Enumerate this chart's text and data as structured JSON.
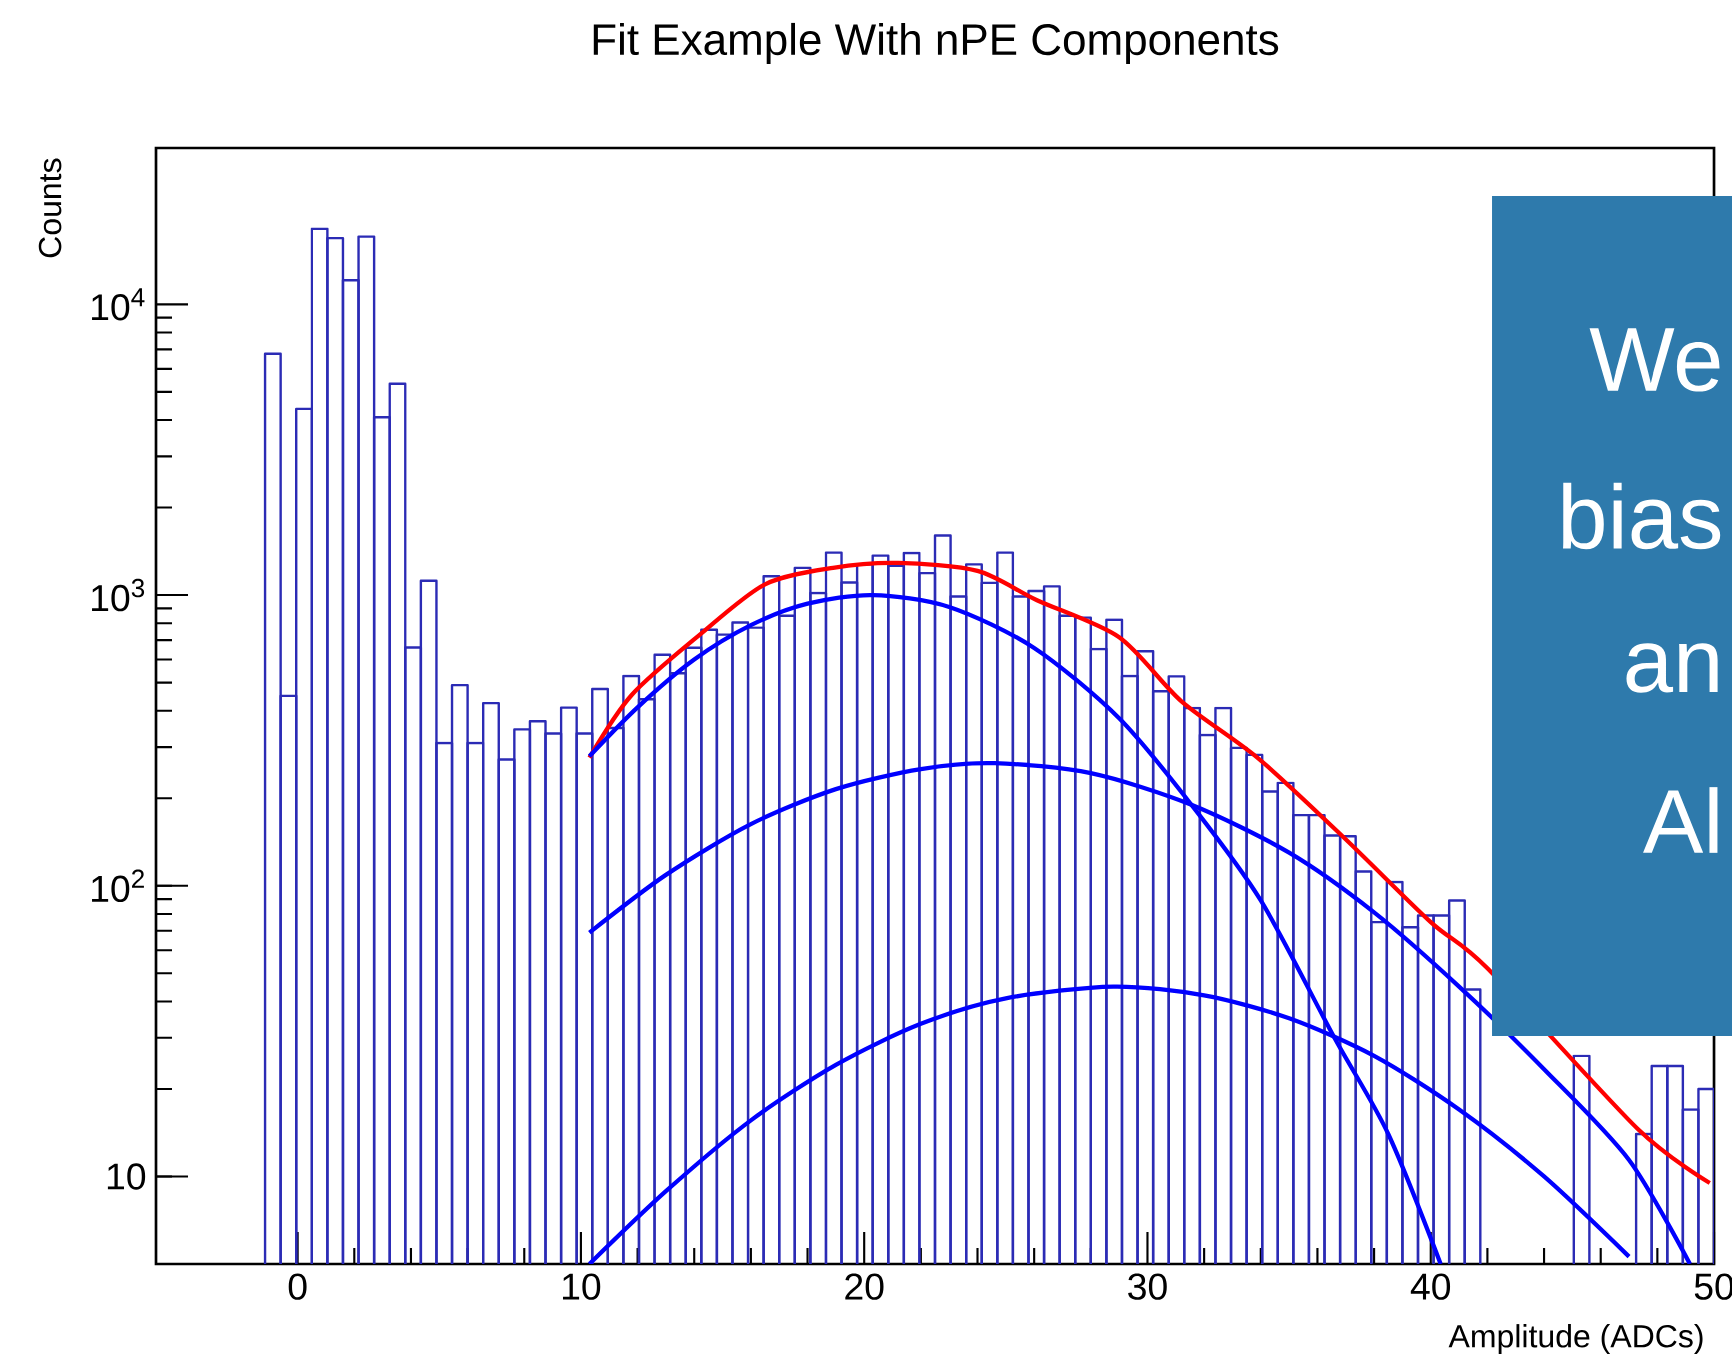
{
  "chart_data": {
    "type": "histogram",
    "title": "Fit Example With nPE Components",
    "xlabel": "Amplitude (ADCs)",
    "ylabel": "Counts",
    "xlim": [
      -5,
      50
    ],
    "xticks": [
      0,
      10,
      20,
      30,
      40,
      50
    ],
    "ylim": [
      5,
      34500
    ],
    "yticks": [
      10,
      {
        "value": 100,
        "label": "10$^{2}$"
      },
      {
        "value": 1000,
        "label": "10$^{3}$"
      },
      {
        "value": 10000,
        "label": "10$^{4}$"
      }
    ],
    "log": "y",
    "annotations": [
      "We",
      "bias",
      "an",
      "Al"
    ],
    "series": [
      {
        "type": "histogram",
        "color": "#2b2bb5",
        "bins": [
          -1.15,
          -0.6,
          -0.05,
          0.5,
          1.05,
          1.6,
          2.15,
          2.7,
          3.25,
          3.8,
          4.35,
          4.9,
          5.45,
          6,
          6.55,
          7.1,
          7.65,
          8.2,
          8.75,
          9.3,
          9.85,
          10.4,
          10.95,
          11.5,
          12.05,
          12.6,
          13.15,
          13.7,
          14.25,
          14.8,
          15.35,
          15.9,
          16.45,
          17,
          17.55,
          18.1,
          18.65,
          19.2,
          19.75,
          20.3,
          20.85,
          21.4,
          21.95,
          22.5,
          23.05,
          23.6,
          24.15,
          24.7,
          25.25,
          25.8,
          26.35,
          26.9,
          27.45,
          28,
          28.55,
          29.1,
          29.65,
          30.2,
          30.75,
          31.3,
          31.85,
          32.4,
          32.95,
          33.5,
          34.05,
          34.6,
          35.15,
          35.7,
          36.25,
          36.8,
          37.35,
          37.9,
          38.45,
          39,
          39.55,
          40.1,
          40.65,
          41.2,
          41.75,
          42.3,
          42.85,
          43.4,
          43.95,
          44.5,
          45.05,
          45.6,
          46.15,
          46.7,
          47.25,
          47.8,
          48.35,
          48.9,
          49.45,
          50
        ],
        "values": [
          6760,
          450,
          4370,
          18200,
          16900,
          12100,
          17100,
          4090,
          5330,
          660,
          1120,
          310,
          490,
          310,
          425,
          272,
          345,
          368,
          334,
          410,
          334,
          475,
          349,
          527,
          438,
          623,
          538,
          659,
          760,
          731,
          805,
          773,
          1160,
          849,
          1240,
          1016,
          1400,
          1105,
          1275,
          1367,
          1262,
          1396,
          1190,
          1602,
          989,
          1275,
          1101,
          1400,
          989,
          1033,
          1071,
          849,
          836,
          652,
          822,
          527,
          641,
          467,
          525,
          409,
          330,
          409,
          298,
          282,
          211,
          226,
          175,
          175,
          149,
          148,
          112,
          75,
          103,
          72,
          79,
          79,
          89,
          44,
          null,
          null,
          null,
          null,
          null,
          null,
          26,
          null,
          null,
          null,
          14,
          24,
          24,
          17,
          20
        ]
      },
      {
        "type": "line",
        "color": "#ff0000",
        "x": [
          10.3,
          11.8,
          14.2,
          16.5,
          18.9,
          21.2,
          24.0,
          26.1,
          29,
          31.2,
          33.9,
          36.95,
          40,
          42,
          47.3,
          49.85
        ],
        "values": [
          276,
          454,
          731,
          1089,
          1241,
          1290,
          1211,
          960,
          716,
          431,
          275,
          146,
          75,
          52,
          14.6,
          9.5
        ]
      },
      {
        "type": "line",
        "color": "#0000ff",
        "x": [
          10.3,
          12,
          14,
          16,
          18,
          20.3,
          23,
          26,
          29,
          31.55,
          34,
          36.6,
          38.5,
          40.35
        ],
        "values": [
          279,
          411,
          600,
          788,
          934,
          1000,
          910,
          658,
          377,
          190,
          89,
          30,
          14,
          5
        ]
      },
      {
        "type": "line",
        "color": "#0000ff",
        "x": [
          10.3,
          13,
          16,
          19,
          22,
          24.6,
          28,
          31.55,
          35,
          38,
          41,
          44,
          47,
          49.15
        ],
        "values": [
          69,
          109,
          163,
          215,
          252,
          264,
          244,
          190,
          130,
          81,
          45,
          23.4,
          11.4,
          5
        ]
      },
      {
        "type": "line",
        "color": "#0000ff",
        "x": [
          10.3,
          13,
          16,
          19,
          22,
          25,
          28.8,
          32,
          35,
          38,
          41,
          44,
          47
        ],
        "values": [
          5,
          8.9,
          15.6,
          24.2,
          33.5,
          41,
          45,
          42,
          35,
          26,
          17,
          10,
          5.3
        ]
      }
    ]
  }
}
